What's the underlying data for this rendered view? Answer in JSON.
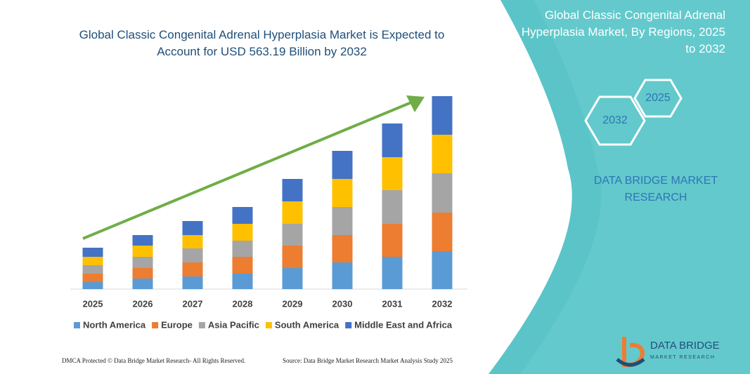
{
  "chart_data": {
    "type": "bar",
    "stacked": true,
    "title": "Global Classic Congenital Adrenal Hyperplasia Market is Expected to Account for USD 563.19 Billion by 2032",
    "categories": [
      "2025",
      "2026",
      "2027",
      "2028",
      "2029",
      "2030",
      "2031",
      "2032"
    ],
    "series": [
      {
        "name": "North America",
        "color": "#5b9bd5",
        "values": [
          10,
          15,
          18,
          22,
          30,
          38,
          46,
          54
        ]
      },
      {
        "name": "Europe",
        "color": "#ed7d31",
        "values": [
          12,
          15,
          20,
          24,
          32,
          39,
          47,
          55
        ]
      },
      {
        "name": "Asia Pacific",
        "color": "#a5a5a5",
        "values": [
          12,
          16,
          20,
          23,
          31,
          40,
          48,
          56
        ]
      },
      {
        "name": "South America",
        "color": "#ffc000",
        "values": [
          12,
          16,
          19,
          24,
          32,
          40,
          47,
          55
        ]
      },
      {
        "name": "Middle East and Africa",
        "color": "#4472c4",
        "values": [
          13,
          15,
          20,
          24,
          32,
          40,
          48,
          55
        ]
      }
    ],
    "ylim": [
      0,
      280
    ]
  },
  "panel": {
    "title": "Global Classic Congenital Adrenal Hyperplasia Market, By Regions, 2025 to 2032",
    "hex_start": "2025",
    "hex_end": "2032",
    "brand": "DATA BRIDGE MARKET RESEARCH",
    "logo_name": "DATA BRIDGE",
    "logo_sub": "MARKET RESEARCH"
  },
  "footer": {
    "left": "DMCA Protected © Data Bridge Market Research- All Rights Reserved.",
    "right": "Source: Data Bridge Market Research Market Analysis Study 2025"
  }
}
